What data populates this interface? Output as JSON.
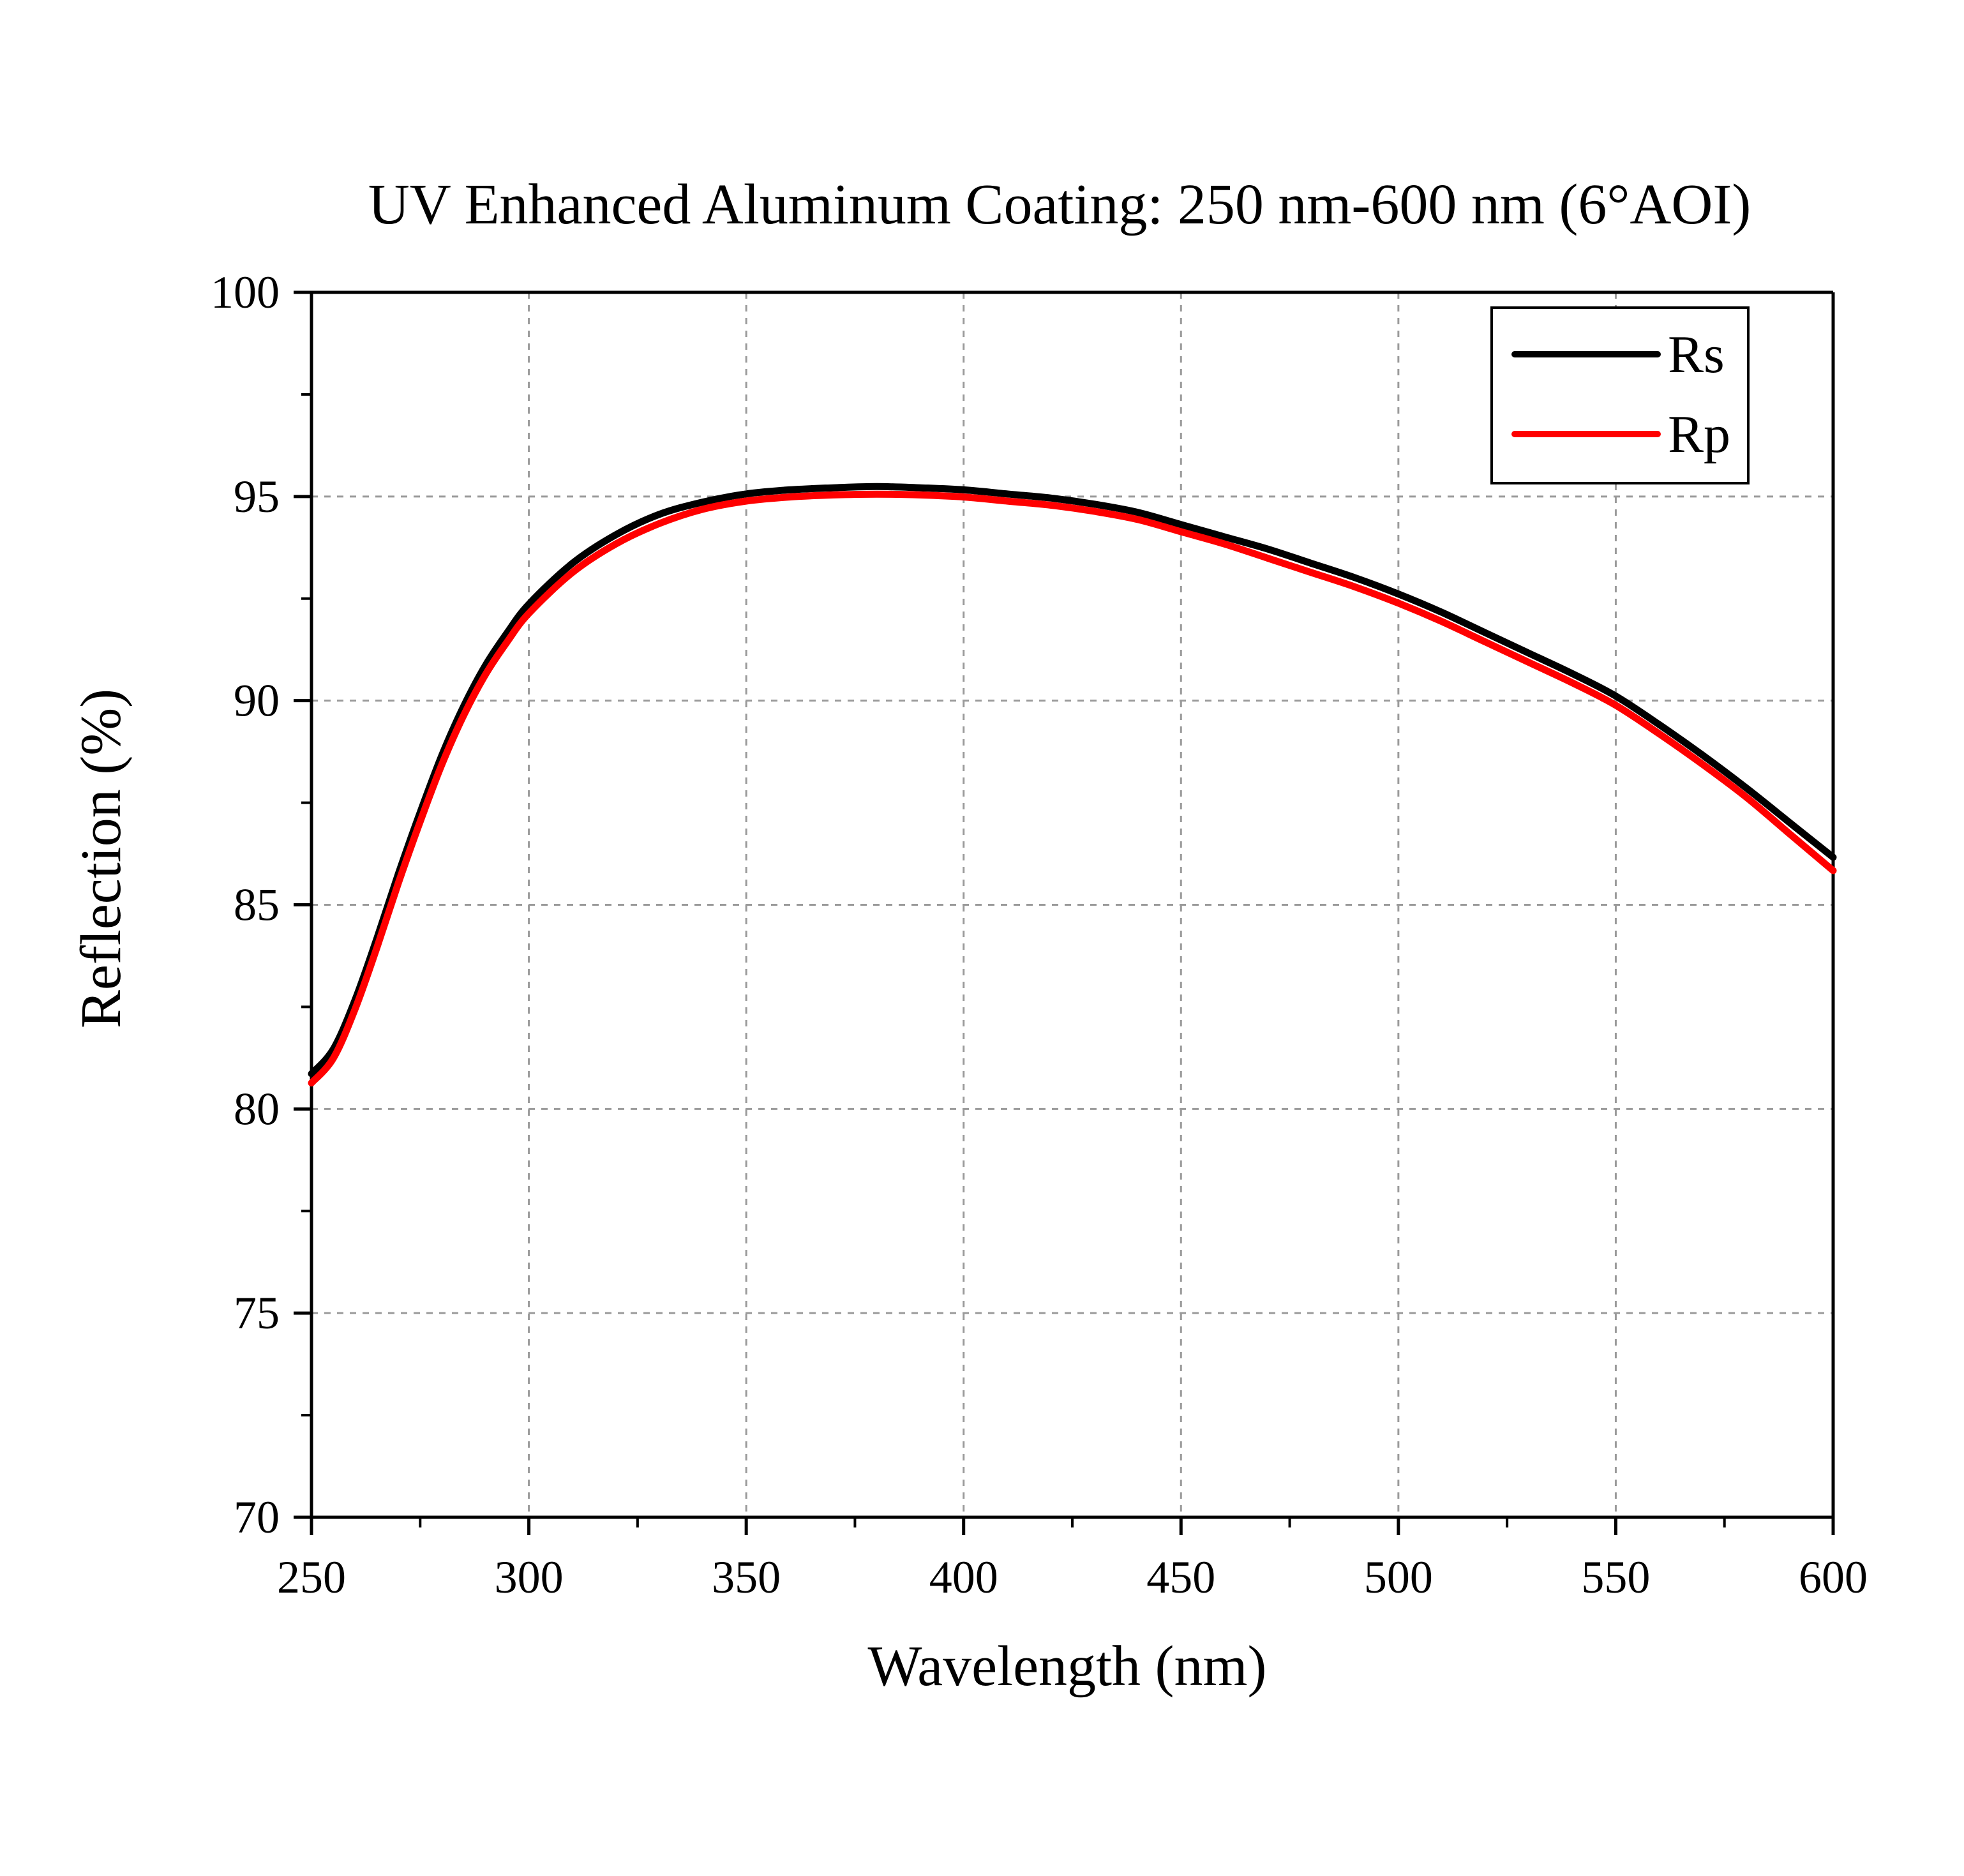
{
  "chart_data": {
    "type": "line",
    "title": "UV Enhanced Aluminum Coating: 250 nm-600 nm (6°AOI)",
    "xlabel": "Wavelength (nm)",
    "ylabel": "Reflection (%)",
    "xlim": [
      250,
      600
    ],
    "ylim": [
      70,
      100
    ],
    "xticks": [
      250,
      300,
      350,
      400,
      450,
      500,
      550,
      600
    ],
    "yticks": [
      70,
      75,
      80,
      85,
      90,
      95,
      100
    ],
    "x_tick_labels": [
      "250",
      "300",
      "350",
      "400",
      "450",
      "500",
      "550",
      "600"
    ],
    "y_tick_labels": [
      "70",
      "75",
      "80",
      "85",
      "90",
      "95",
      "100"
    ],
    "grid": true,
    "legend_position": "top-right",
    "series": [
      {
        "name": "Rs",
        "color": "#000000",
        "x": [
          250,
          255,
          260,
          265,
          270,
          275,
          280,
          285,
          290,
          295,
          300,
          310,
          320,
          330,
          340,
          350,
          360,
          370,
          380,
          390,
          400,
          410,
          420,
          430,
          440,
          450,
          460,
          470,
          480,
          490,
          500,
          510,
          520,
          530,
          540,
          550,
          560,
          570,
          580,
          590,
          600
        ],
        "y": [
          80.8,
          81.4,
          82.6,
          84.1,
          85.7,
          87.2,
          88.6,
          89.8,
          90.8,
          91.6,
          92.3,
          93.3,
          94.0,
          94.5,
          94.8,
          95.0,
          95.1,
          95.15,
          95.18,
          95.15,
          95.1,
          95.0,
          94.9,
          94.75,
          94.55,
          94.25,
          93.95,
          93.65,
          93.3,
          92.95,
          92.55,
          92.1,
          91.6,
          91.1,
          90.6,
          90.05,
          89.35,
          88.6,
          87.8,
          86.95,
          86.1
        ]
      },
      {
        "name": "Rp",
        "color": "#ff0000",
        "x": [
          250,
          255,
          260,
          265,
          270,
          275,
          280,
          285,
          290,
          295,
          300,
          310,
          320,
          330,
          340,
          350,
          360,
          370,
          380,
          390,
          400,
          410,
          420,
          430,
          440,
          450,
          460,
          470,
          480,
          490,
          500,
          510,
          520,
          530,
          540,
          550,
          560,
          570,
          580,
          590,
          600
        ],
        "y": [
          80.7,
          81.3,
          82.5,
          84.0,
          85.6,
          87.1,
          88.5,
          89.7,
          90.7,
          91.5,
          92.2,
          93.2,
          93.9,
          94.4,
          94.75,
          94.95,
          95.05,
          95.1,
          95.12,
          95.1,
          95.05,
          94.95,
          94.85,
          94.7,
          94.5,
          94.2,
          93.9,
          93.55,
          93.2,
          92.85,
          92.45,
          92.0,
          91.5,
          91.0,
          90.5,
          89.95,
          89.25,
          88.5,
          87.7,
          86.8,
          85.9
        ]
      }
    ]
  }
}
